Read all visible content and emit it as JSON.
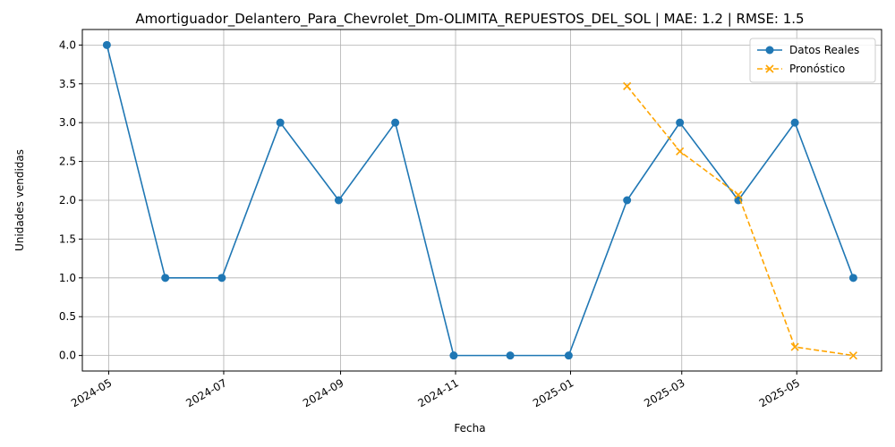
{
  "chart_data": {
    "type": "line",
    "title": "Amortiguador_Delantero_Para_Chevrolet_Dm-OLIMITA_REPUESTOS_DEL_SOL | MAE: 1.2 | RMSE: 1.5",
    "xlabel": "Fecha",
    "ylabel": "Unidades vendidas",
    "xlim": [
      "2024-04-17",
      "2025-06-15"
    ],
    "ylim": [
      -0.2,
      4.2
    ],
    "x_ticks": [
      {
        "date": "2024-05-01",
        "label": "2024-05"
      },
      {
        "date": "2024-07-01",
        "label": "2024-07"
      },
      {
        "date": "2024-09-01",
        "label": "2024-09"
      },
      {
        "date": "2024-11-01",
        "label": "2024-11"
      },
      {
        "date": "2025-01-01",
        "label": "2025-01"
      },
      {
        "date": "2025-03-01",
        "label": "2025-03"
      },
      {
        "date": "2025-05-01",
        "label": "2025-05"
      }
    ],
    "y_ticks": [
      {
        "value": 0.0,
        "label": "0.0"
      },
      {
        "value": 0.5,
        "label": "0.5"
      },
      {
        "value": 1.0,
        "label": "1.0"
      },
      {
        "value": 1.5,
        "label": "1.5"
      },
      {
        "value": 2.0,
        "label": "2.0"
      },
      {
        "value": 2.5,
        "label": "2.5"
      },
      {
        "value": 3.0,
        "label": "3.0"
      },
      {
        "value": 3.5,
        "label": "3.5"
      },
      {
        "value": 4.0,
        "label": "4.0"
      }
    ],
    "grid": true,
    "legend_position": "top-right",
    "series": [
      {
        "name": "Datos Reales",
        "color": "#1f77b4",
        "marker": "circle",
        "linestyle": "solid",
        "x": [
          "2024-04-30",
          "2024-05-31",
          "2024-06-30",
          "2024-07-31",
          "2024-08-31",
          "2024-09-30",
          "2024-10-31",
          "2024-11-30",
          "2024-12-31",
          "2025-01-31",
          "2025-02-28",
          "2025-03-31",
          "2025-04-30",
          "2025-05-31"
        ],
        "y": [
          4,
          1,
          1,
          3,
          2,
          3,
          0,
          0,
          0,
          2,
          3,
          2,
          3,
          1
        ]
      },
      {
        "name": "Pronóstico",
        "color": "#ffa500",
        "marker": "x",
        "linestyle": "dashed",
        "x": [
          "2025-01-31",
          "2025-02-28",
          "2025-03-31",
          "2025-04-30",
          "2025-05-31"
        ],
        "y": [
          3.47,
          2.63,
          2.07,
          0.11,
          0.0
        ]
      }
    ]
  }
}
